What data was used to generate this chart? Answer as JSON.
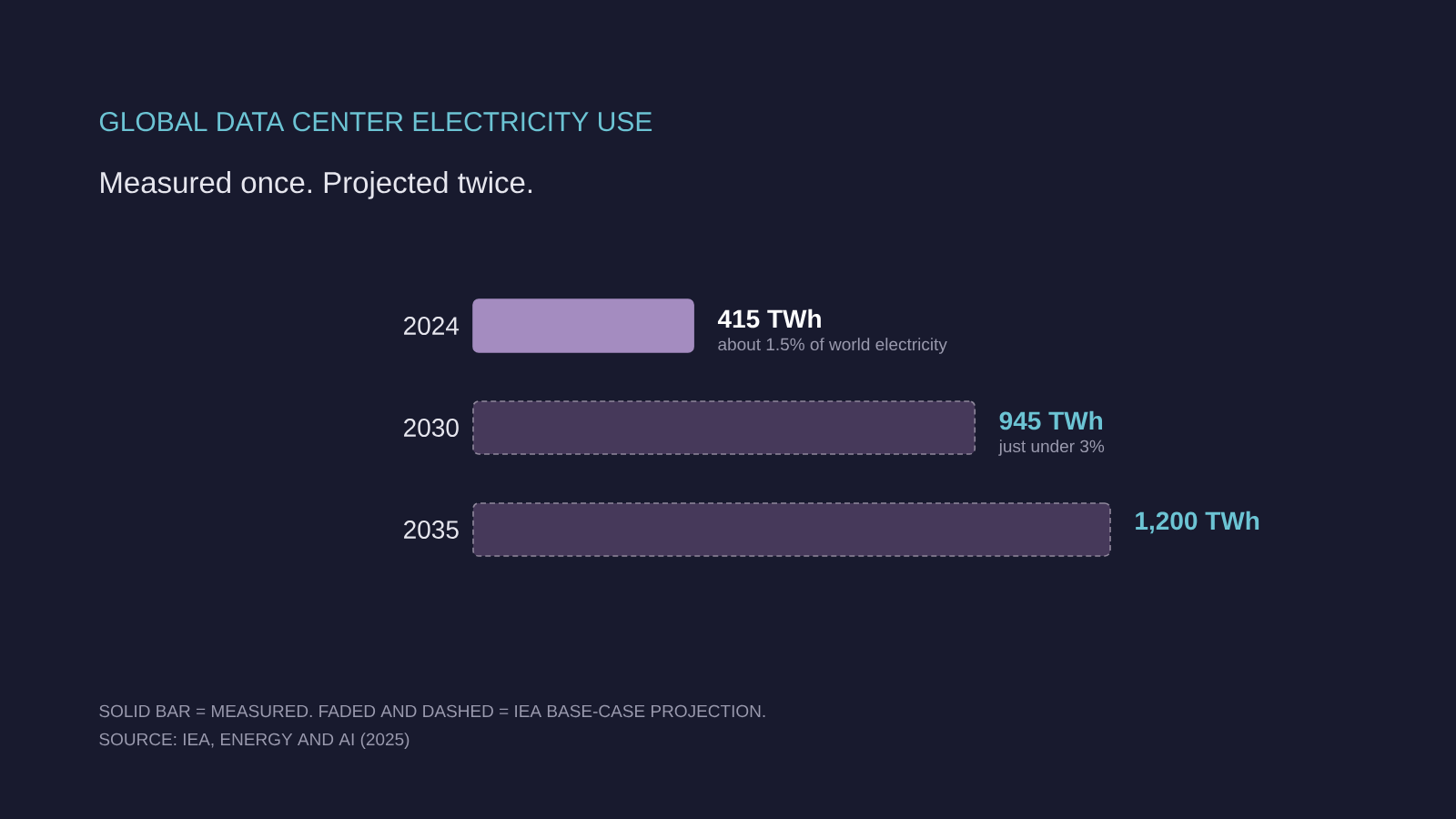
{
  "chart_data": {
    "type": "bar",
    "orientation": "horizontal",
    "title": "GLOBAL DATA CENTER ELECTRICITY USE",
    "subtitle": "Measured once. Projected twice.",
    "categories": [
      "2024",
      "2030",
      "2035"
    ],
    "xlim": [
      0,
      1200
    ],
    "tick_labels": "y",
    "series": [
      {
        "color": "#a48cc0",
        "line_style": "solid",
        "values": [
          415,
          null,
          null
        ],
        "value_labels": [
          "415 TWh",
          null,
          null
        ]
      },
      {
        "color": "#46395a",
        "line_style": "dashed",
        "values": [
          null,
          945,
          1200
        ],
        "value_labels": [
          null,
          "945 TWh",
          "1,200 TWh"
        ]
      }
    ],
    "annotations": [
      {
        "text": "about 1.5% of world electricity",
        "x": 415,
        "y": "2024"
      },
      {
        "text": "just under 3%",
        "x": 945,
        "y": "2030"
      },
      "SOLID BAR = MEASURED. FADED AND DASHED = IEA BASE-CASE PROJECTION.",
      "SOURCE: IEA, ENERGY AND AI (2025)"
    ]
  }
}
